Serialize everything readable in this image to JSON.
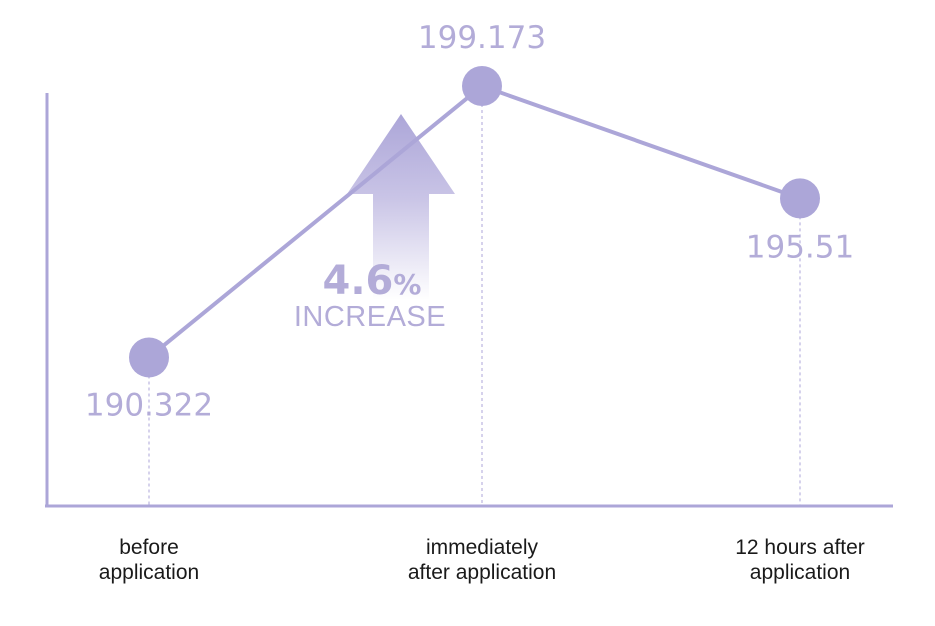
{
  "colors": {
    "line": "#aca6d8",
    "marker": "#aca6d8",
    "value_label": "#b3acd8",
    "axis": "#aca6d8",
    "category_label": "#1a1a1a",
    "arrow_top": "#aca6d8",
    "arrow_bottom": "#ffffff"
  },
  "annotation": {
    "percent_number": "4.6",
    "percent_sign": "%",
    "text": "INCREASE",
    "icon": "up-arrow-icon"
  },
  "chart_data": {
    "type": "line",
    "title": "",
    "xlabel": "",
    "ylabel": "",
    "grid": false,
    "legend": "none",
    "categories": [
      [
        "before",
        "application"
      ],
      [
        "immediately",
        "after application"
      ],
      [
        "12 hours after",
        "application"
      ]
    ],
    "value_labels": [
      "190.322",
      "199.173",
      "195.51"
    ],
    "values": [
      190.322,
      199.173,
      195.51
    ],
    "ylim": [
      186,
      201
    ]
  }
}
